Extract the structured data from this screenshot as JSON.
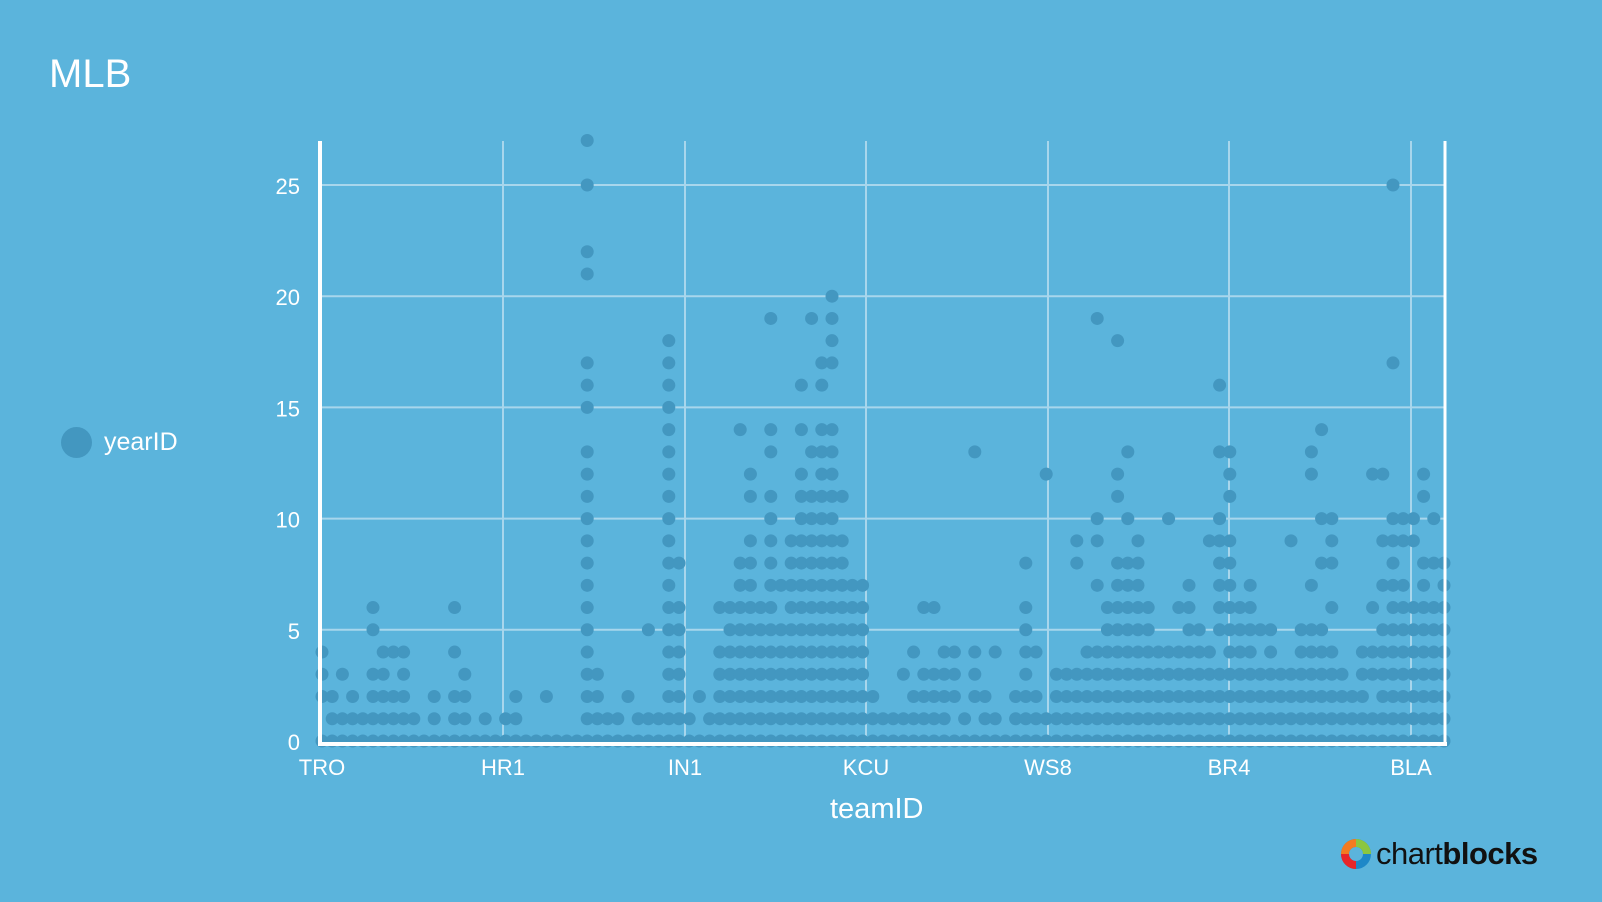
{
  "title": "MLB",
  "legend": {
    "items": [
      {
        "label": "yearID",
        "color": "#4397c0"
      }
    ]
  },
  "branding": {
    "text_light": "chart",
    "text_bold": "blocks"
  },
  "colors": {
    "background": "#5bb4dc",
    "point": "#4397c0",
    "grid": "#a8d6ec",
    "axis": "#ffffff"
  },
  "chart_data": {
    "type": "scatter",
    "title": "MLB",
    "xlabel": "teamID",
    "ylabel": "",
    "ylim": [
      0,
      27
    ],
    "yticks": [
      0,
      5,
      10,
      15,
      20,
      25
    ],
    "xtick_labels": [
      "TRO",
      "HR1",
      "IN1",
      "KCU",
      "WS8",
      "BR4",
      "BLA"
    ],
    "grid": true,
    "legend_position": "left",
    "series": [
      {
        "name": "yearID",
        "columns": [
          [
            0,
            2,
            3,
            4
          ],
          [
            0,
            1,
            2
          ],
          [
            0,
            1,
            3
          ],
          [
            0,
            1,
            2
          ],
          [
            0,
            1
          ],
          [
            0,
            1,
            2,
            3,
            5,
            6
          ],
          [
            0,
            1,
            2,
            3,
            4
          ],
          [
            0,
            1,
            2,
            4
          ],
          [
            0,
            1,
            2,
            3,
            4
          ],
          [
            0,
            1
          ],
          [
            0
          ],
          [
            0,
            1,
            2
          ],
          [
            0
          ],
          [
            0,
            1,
            2,
            4,
            6
          ],
          [
            0,
            1,
            2,
            3
          ],
          [
            0
          ],
          [
            0,
            1
          ],
          [
            0
          ],
          [
            0,
            1
          ],
          [
            0,
            1,
            2
          ],
          [
            0
          ],
          [
            0
          ],
          [
            0,
            2
          ],
          [
            0
          ],
          [
            0
          ],
          [
            0
          ],
          [
            0,
            1,
            2,
            3,
            4,
            5,
            6,
            7,
            8,
            9,
            10,
            11,
            12,
            13,
            15,
            16,
            17,
            21,
            22,
            25,
            27
          ],
          [
            0,
            1,
            2,
            3
          ],
          [
            0,
            1
          ],
          [
            0,
            1
          ],
          [
            0,
            2
          ],
          [
            0,
            1
          ],
          [
            0,
            1,
            5
          ],
          [
            0,
            1
          ],
          [
            0,
            1,
            2,
            3,
            4,
            5,
            6,
            7,
            8,
            9,
            10,
            11,
            12,
            13,
            14,
            15,
            16,
            17,
            18
          ],
          [
            0,
            1,
            2,
            3,
            4,
            5,
            6,
            8
          ],
          [
            0,
            1
          ],
          [
            0,
            2
          ],
          [
            0,
            1
          ],
          [
            0,
            1,
            2,
            3,
            4,
            6
          ],
          [
            0,
            1,
            2,
            3,
            4,
            5,
            6
          ],
          [
            0,
            1,
            2,
            3,
            4,
            5,
            6,
            7,
            8,
            14
          ],
          [
            0,
            1,
            2,
            3,
            4,
            5,
            6,
            7,
            8,
            9,
            11,
            12
          ],
          [
            0,
            1,
            2,
            3,
            4,
            5,
            6
          ],
          [
            0,
            1,
            2,
            3,
            4,
            5,
            6,
            7,
            8,
            9,
            10,
            11,
            13,
            14,
            19
          ],
          [
            0,
            1,
            2,
            3,
            4,
            5,
            7
          ],
          [
            0,
            1,
            2,
            3,
            4,
            5,
            6,
            7,
            8,
            9
          ],
          [
            0,
            1,
            2,
            3,
            4,
            5,
            6,
            7,
            8,
            9,
            10,
            11,
            12,
            14,
            16
          ],
          [
            0,
            1,
            2,
            3,
            4,
            5,
            6,
            7,
            8,
            9,
            10,
            11,
            13,
            19
          ],
          [
            0,
            1,
            2,
            3,
            4,
            5,
            6,
            7,
            8,
            9,
            10,
            11,
            12,
            13,
            14,
            16,
            17
          ],
          [
            0,
            1,
            2,
            3,
            4,
            5,
            6,
            7,
            8,
            9,
            10,
            11,
            12,
            13,
            14,
            17,
            18,
            19,
            20
          ],
          [
            0,
            1,
            2,
            3,
            4,
            5,
            6,
            7,
            8,
            9,
            11
          ],
          [
            0,
            1,
            2,
            3,
            4,
            5,
            6,
            7
          ],
          [
            0,
            1,
            2,
            3,
            4,
            5,
            6,
            7
          ],
          [
            0,
            1,
            2
          ],
          [
            0,
            1
          ],
          [
            0,
            1
          ],
          [
            0,
            1,
            3
          ],
          [
            0,
            1,
            2,
            4
          ],
          [
            0,
            1,
            2,
            3,
            6
          ],
          [
            0,
            1,
            2,
            3,
            6
          ],
          [
            0,
            1,
            2,
            3,
            4
          ],
          [
            0,
            2,
            3,
            4
          ],
          [
            0,
            1
          ],
          [
            0,
            2,
            3,
            4,
            13
          ],
          [
            0,
            1,
            2
          ],
          [
            0,
            1,
            4
          ],
          [
            0
          ],
          [
            0,
            1,
            2
          ],
          [
            0,
            1,
            2,
            3,
            4,
            5,
            6,
            8
          ],
          [
            0,
            1,
            2,
            4
          ],
          [
            0,
            1,
            12
          ],
          [
            0,
            1,
            2,
            3
          ],
          [
            0,
            1,
            2,
            3
          ],
          [
            0,
            1,
            2,
            3,
            8,
            9
          ],
          [
            0,
            1,
            2,
            3,
            4
          ],
          [
            0,
            1,
            2,
            3,
            4,
            7,
            9,
            10,
            19
          ],
          [
            0,
            1,
            2,
            3,
            4,
            5,
            6
          ],
          [
            0,
            1,
            2,
            3,
            4,
            5,
            6,
            7,
            8,
            11,
            12,
            18
          ],
          [
            0,
            1,
            2,
            3,
            4,
            5,
            6,
            7,
            8,
            10,
            13
          ],
          [
            0,
            1,
            2,
            3,
            4,
            5,
            6,
            7,
            8,
            9
          ],
          [
            0,
            1,
            2,
            3,
            4,
            5,
            6
          ],
          [
            0,
            1,
            2,
            3,
            4
          ],
          [
            0,
            1,
            2,
            3,
            4,
            10
          ],
          [
            0,
            1,
            2,
            3,
            4,
            6
          ],
          [
            0,
            1,
            2,
            3,
            4,
            5,
            6,
            7
          ],
          [
            0,
            1,
            2,
            3,
            4,
            5
          ],
          [
            0,
            1,
            2,
            3,
            4,
            9
          ],
          [
            0,
            1,
            2,
            3,
            5,
            6,
            7,
            8,
            9,
            10,
            13,
            16
          ],
          [
            0,
            1,
            2,
            3,
            4,
            5,
            6,
            7,
            8,
            9,
            11,
            12,
            13
          ],
          [
            0,
            1,
            2,
            3,
            4,
            5,
            6
          ],
          [
            0,
            1,
            2,
            3,
            4,
            5,
            6,
            7
          ],
          [
            0,
            1,
            2,
            3,
            5
          ],
          [
            0,
            1,
            2,
            3,
            4,
            5
          ],
          [
            0,
            1,
            2,
            3
          ],
          [
            0,
            1,
            2,
            3,
            9
          ],
          [
            0,
            1,
            2,
            3,
            4,
            5
          ],
          [
            0,
            1,
            2,
            3,
            4,
            5,
            7,
            12,
            13
          ],
          [
            0,
            1,
            2,
            3,
            4,
            5,
            8,
            10,
            14
          ],
          [
            0,
            1,
            2,
            3,
            4,
            6,
            8,
            9,
            10
          ],
          [
            0,
            1,
            2,
            3
          ],
          [
            0,
            1,
            2
          ],
          [
            0,
            1,
            2,
            3,
            4
          ],
          [
            0,
            1,
            3,
            4,
            6,
            12
          ],
          [
            0,
            1,
            2,
            3,
            4,
            5,
            7,
            9,
            12
          ],
          [
            0,
            1,
            2,
            3,
            4,
            5,
            6,
            7,
            8,
            9,
            10,
            17,
            25
          ],
          [
            0,
            1,
            2,
            3,
            4,
            5,
            6,
            7,
            9,
            10
          ],
          [
            0,
            1,
            2,
            3,
            4,
            5,
            6,
            9,
            10
          ],
          [
            0,
            1,
            2,
            3,
            4,
            5,
            6,
            7,
            8,
            11,
            12
          ],
          [
            0,
            1,
            2,
            3,
            4,
            5,
            6,
            8,
            10
          ],
          [
            0,
            1,
            2,
            3,
            4,
            5,
            6,
            7,
            8
          ],
          [
            0,
            1,
            2,
            3,
            4,
            5,
            6,
            7,
            8
          ],
          [
            0,
            1,
            2,
            3,
            4,
            5,
            6,
            7,
            8,
            11,
            12
          ],
          [
            0,
            1,
            2,
            3,
            4,
            5,
            6,
            7,
            8,
            10,
            12,
            14,
            16
          ],
          [
            0,
            1,
            2,
            3,
            4,
            5,
            6,
            7,
            9
          ],
          [
            0,
            1,
            2,
            3,
            4,
            5,
            6,
            7,
            9,
            11,
            12,
            13
          ],
          [
            0,
            1,
            2,
            3,
            4,
            5,
            6
          ],
          [
            0,
            1,
            2,
            3,
            4,
            5,
            7,
            8
          ],
          [
            0,
            1,
            2,
            3,
            4,
            5,
            6,
            7,
            9,
            10
          ],
          [
            0,
            1,
            2,
            3,
            4,
            5,
            6,
            7
          ],
          [
            0,
            1,
            2,
            3,
            4,
            5,
            6
          ],
          [
            0,
            1,
            2,
            3,
            4,
            5,
            6
          ]
        ]
      }
    ]
  }
}
